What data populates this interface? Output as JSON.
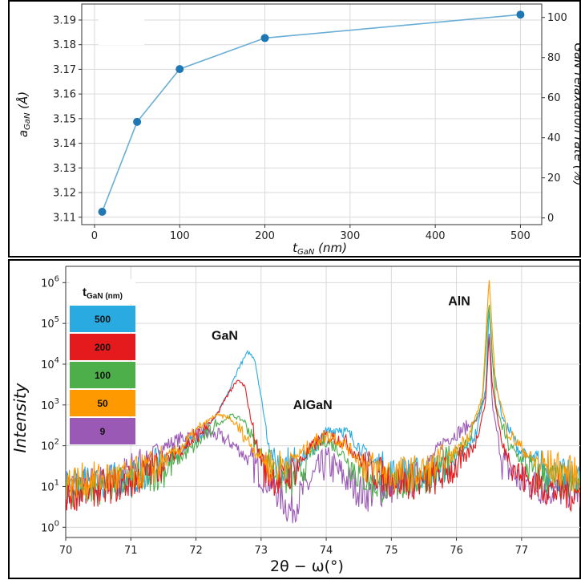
{
  "chart_data": [
    {
      "type": "line",
      "xlabel": "t",
      "xlabel_sub": "GaN",
      "xlabel_unit": " (nm)",
      "ylabel": "a",
      "ylabel_sub": "GaN",
      "ylabel_unit": " (Å)",
      "y2label": "GaN relaxation rate (%)",
      "xlim": [
        -15,
        525
      ],
      "ylim": [
        3.107,
        3.1965
      ],
      "y2lim": [
        -3.33,
        106.7
      ],
      "xticks": [
        0,
        100,
        200,
        300,
        400,
        500
      ],
      "yticks": [
        3.11,
        3.12,
        3.13,
        3.14,
        3.15,
        3.16,
        3.17,
        3.18,
        3.19
      ],
      "y2ticks": [
        0,
        20,
        40,
        60,
        80,
        100
      ],
      "grid": true,
      "color": "#1f77b4",
      "x": [
        9,
        50,
        100,
        200,
        500
      ],
      "y": [
        3.1122,
        3.1487,
        3.1701,
        3.1827,
        3.1922
      ]
    },
    {
      "type": "line",
      "xlabel": "2θ − ω(°)",
      "ylabel": "Intensity",
      "yscale": "log",
      "xlim": [
        70,
        77.9
      ],
      "ylim_exp": [
        -0.25,
        6.4
      ],
      "xticks": [
        70,
        71,
        72,
        73,
        74,
        75,
        76,
        77
      ],
      "yticks_exp": [
        0,
        1,
        2,
        3,
        4,
        5,
        6
      ],
      "grid": true,
      "legend_title": "t",
      "legend_title_sub": "GaN (nm)",
      "legend_position": "top-left",
      "annotations": [
        {
          "text": "GaN",
          "x": 72.75,
          "y_exp": 4.6
        },
        {
          "text": "AlGaN",
          "x": 74.1,
          "y_exp": 2.9
        },
        {
          "text": "AlN",
          "x": 76.35,
          "y_exp": 5.45
        }
      ],
      "series": [
        {
          "name": "500",
          "color": "#29abe2",
          "x": [
            70,
            71,
            71.5,
            72,
            72.3,
            72.5,
            72.65,
            72.8,
            72.9,
            73.0,
            73.1,
            73.2,
            73.5,
            73.8,
            74.0,
            74.2,
            74.4,
            74.7,
            75.0,
            75.5,
            75.8,
            76.1,
            76.3,
            76.45,
            76.5,
            76.55,
            76.7,
            77.0,
            77.5,
            77.9
          ],
          "y_exp": [
            1.0,
            1.2,
            1.6,
            2.2,
            2.7,
            3.3,
            3.9,
            4.3,
            4.15,
            3.2,
            2.2,
            1.6,
            1.55,
            1.9,
            2.3,
            2.45,
            2.2,
            1.6,
            1.3,
            1.3,
            1.5,
            1.8,
            2.3,
            3.4,
            5.4,
            4.1,
            2.7,
            1.8,
            1.3,
            1.15
          ]
        },
        {
          "name": "200",
          "color": "#e41a1c",
          "x": [
            70,
            71,
            71.5,
            72,
            72.3,
            72.5,
            72.65,
            72.75,
            72.85,
            72.95,
            73.05,
            73.3,
            73.5,
            73.8,
            74.0,
            74.3,
            74.6,
            75.0,
            75.5,
            75.8,
            76.1,
            76.3,
            76.45,
            76.5,
            76.55,
            76.7,
            77.0,
            77.5,
            77.9
          ],
          "y_exp": [
            0.8,
            1.1,
            1.6,
            2.2,
            2.7,
            3.3,
            3.6,
            3.45,
            2.6,
            1.9,
            1.4,
            1.1,
            1.4,
            2.0,
            2.25,
            2.1,
            1.5,
            1.15,
            1.1,
            1.3,
            1.6,
            2.1,
            3.1,
            4.8,
            3.5,
            2.0,
            1.2,
            0.9,
            0.8
          ]
        },
        {
          "name": "100",
          "color": "#4daf4a",
          "x": [
            70,
            71,
            71.5,
            72,
            72.3,
            72.55,
            72.75,
            72.95,
            73.2,
            73.5,
            73.8,
            74.0,
            74.2,
            74.5,
            74.8,
            75.2,
            75.6,
            75.9,
            76.2,
            76.4,
            76.5,
            76.6,
            76.8,
            77.2,
            77.6,
            77.9
          ],
          "y_exp": [
            0.9,
            1.1,
            1.4,
            2.0,
            2.5,
            2.75,
            2.6,
            1.9,
            1.4,
            1.1,
            1.9,
            2.15,
            1.9,
            1.3,
            1.0,
            1.1,
            1.3,
            1.6,
            2.2,
            3.1,
            5.55,
            3.0,
            2.0,
            1.3,
            1.1,
            1.0
          ]
        },
        {
          "name": "50",
          "color": "#ff9900",
          "x": [
            70,
            71,
            71.5,
            71.8,
            72.1,
            72.3,
            72.5,
            72.7,
            72.9,
            73.1,
            73.3,
            73.6,
            73.9,
            74.1,
            74.3,
            74.6,
            75.0,
            75.5,
            75.9,
            76.2,
            76.4,
            76.5,
            76.6,
            76.8,
            77.2,
            77.9
          ],
          "y_exp": [
            1.1,
            1.25,
            1.6,
            2.0,
            2.5,
            2.75,
            2.7,
            2.35,
            1.9,
            1.55,
            1.5,
            1.8,
            2.2,
            2.25,
            2.0,
            1.5,
            1.3,
            1.35,
            1.7,
            2.3,
            3.2,
            6.1,
            3.5,
            2.3,
            1.6,
            1.25
          ]
        },
        {
          "name": "9",
          "color": "#9b59b6",
          "x": [
            70,
            70.6,
            71.0,
            71.4,
            71.8,
            72.1,
            72.35,
            72.6,
            72.9,
            73.2,
            73.45,
            73.7,
            74.0,
            74.3,
            74.6,
            75.0,
            75.4,
            75.8,
            76.1,
            76.3,
            76.45,
            76.5,
            76.55,
            76.7,
            77.0,
            77.5,
            77.9
          ],
          "y_exp": [
            1.0,
            1.1,
            1.4,
            1.9,
            2.2,
            2.3,
            2.25,
            2.0,
            1.5,
            1.0,
            0.4,
            1.0,
            1.6,
            1.2,
            0.8,
            1.0,
            1.2,
            2.1,
            2.4,
            2.6,
            3.2,
            4.9,
            3.0,
            1.6,
            1.1,
            0.9,
            0.9
          ]
        }
      ]
    }
  ]
}
